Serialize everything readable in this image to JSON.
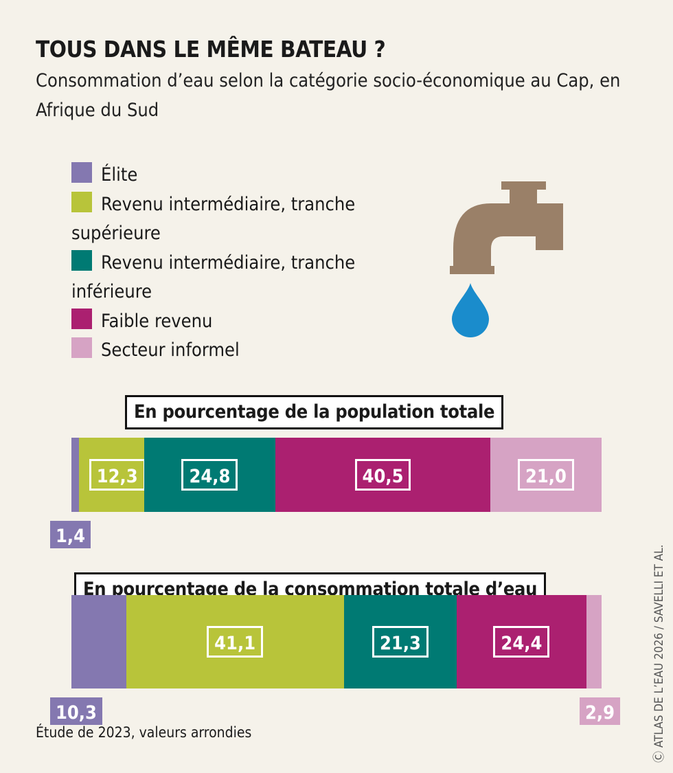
{
  "title": "TOUS DANS LE MÊME BATEAU ?",
  "subtitle": "Consommation d’eau selon la catégorie socio-économique au Cap, en Afrique du Sud",
  "legend": [
    {
      "label": "Élite",
      "color": "#8478b0"
    },
    {
      "label": "Revenu intermédiaire, tranche supérieure",
      "color": "#b8c43a"
    },
    {
      "label": "Revenu intermédiaire, tranche inférieure",
      "color": "#007a73"
    },
    {
      "label": "Faible revenu",
      "color": "#ab2070"
    },
    {
      "label": "Secteur informel",
      "color": "#d6a3c4"
    }
  ],
  "icons": {
    "faucet": "faucet-icon",
    "drop": "water-drop-icon",
    "faucet_color": "#9a8068",
    "drop_color": "#1a8ccc"
  },
  "chart_data": [
    {
      "type": "bar",
      "stacked": true,
      "orientation": "horizontal",
      "title": "En pourcentage de la population totale",
      "categories": [
        "Élite",
        "Revenu intermédiaire, tranche supérieure",
        "Revenu intermédiaire, tranche inférieure",
        "Faible revenu",
        "Secteur informel"
      ],
      "values": [
        1.4,
        12.3,
        24.8,
        40.5,
        21.0
      ],
      "labels": [
        "1,4",
        "12,3",
        "24,8",
        "40,5",
        "21,0"
      ]
    },
    {
      "type": "bar",
      "stacked": true,
      "orientation": "horizontal",
      "title": "En pourcentage de la consommation totale d’eau",
      "categories": [
        "Élite",
        "Revenu intermédiaire, tranche supérieure",
        "Revenu intermédiaire, tranche inférieure",
        "Faible revenu",
        "Secteur informel"
      ],
      "values": [
        10.3,
        41.1,
        21.3,
        24.4,
        2.9
      ],
      "labels": [
        "10,3",
        "41,1",
        "21,3",
        "24,4",
        "2,9"
      ]
    }
  ],
  "note": "Étude de 2023, valeurs arrondies",
  "credit": "ATLAS DE L’EAU 2026 / SAVELLI ET AL."
}
